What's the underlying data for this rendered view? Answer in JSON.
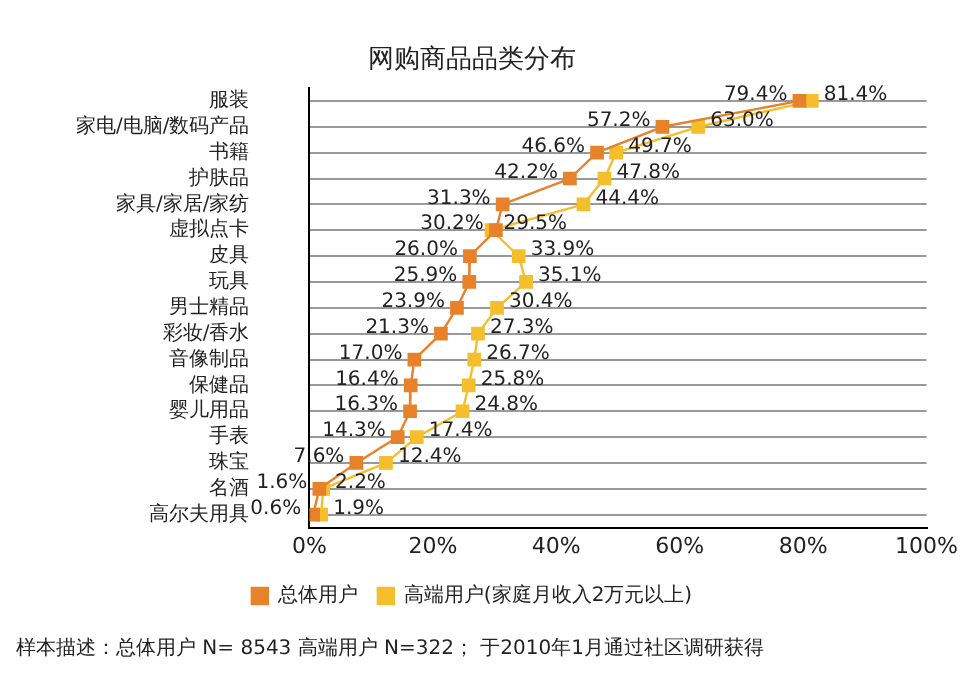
{
  "chart_data": {
    "type": "line",
    "orientation": "horizontal",
    "title": "网购商品品类分布",
    "categories": [
      "服装",
      "家电/电脑/数码产品",
      "书籍",
      "护肤品",
      "家具/家居/家纺",
      "虚拟点卡",
      "皮具",
      "玩具",
      "男士精品",
      "彩妆/香水",
      "音像制品",
      "保健品",
      "婴儿用品",
      "手表",
      "珠宝",
      "名酒",
      "高尔夫用具"
    ],
    "series": [
      {
        "name": "总体用户",
        "color": "#e8822a",
        "values": [
          79.4,
          57.2,
          46.6,
          42.2,
          31.3,
          30.2,
          26.0,
          25.9,
          23.9,
          21.3,
          17.0,
          16.4,
          16.3,
          14.3,
          7.6,
          1.6,
          0.6
        ],
        "value_labels": [
          "79.4%",
          "57.2%",
          "46.6%",
          "42.2%",
          "31.3%",
          "30.2%",
          "26.0%",
          "25.9%",
          "23.9%",
          "21.3%",
          "17.0%",
          "16.4%",
          "16.3%",
          "14.3%",
          "7.6%",
          "1.6%",
          "0.6%"
        ]
      },
      {
        "name": "高端用户(家庭月收入2万元以上)",
        "color": "#f5be2c",
        "values": [
          81.4,
          63.0,
          49.7,
          47.8,
          44.4,
          29.5,
          33.9,
          35.1,
          30.4,
          27.3,
          26.7,
          25.8,
          24.8,
          17.4,
          12.4,
          2.2,
          1.9
        ],
        "value_labels": [
          "81.4%",
          "63.0%",
          "49.7%",
          "47.8%",
          "44.4%",
          "29.5%",
          "33.9%",
          "35.1%",
          "30.4%",
          "27.3%",
          "26.7%",
          "25.8%",
          "24.8%",
          "17.4%",
          "12.4%",
          "2.2%",
          "1.9%"
        ]
      }
    ],
    "xlim": [
      0,
      100
    ],
    "xticks": [
      {
        "value": 0,
        "label": "0%"
      },
      {
        "value": 20,
        "label": "20%"
      },
      {
        "value": 40,
        "label": "40%"
      },
      {
        "value": 60,
        "label": "60%"
      },
      {
        "value": 80,
        "label": "80%"
      },
      {
        "value": 100,
        "label": "100%"
      }
    ],
    "grid": "y",
    "legend": "bottom",
    "marker": "square",
    "line_style": "solid",
    "annotations": [
      "样本描述：总体用户 N= 8543  高端用户 N=322；  于2010年1月通过社区调研获得"
    ]
  }
}
